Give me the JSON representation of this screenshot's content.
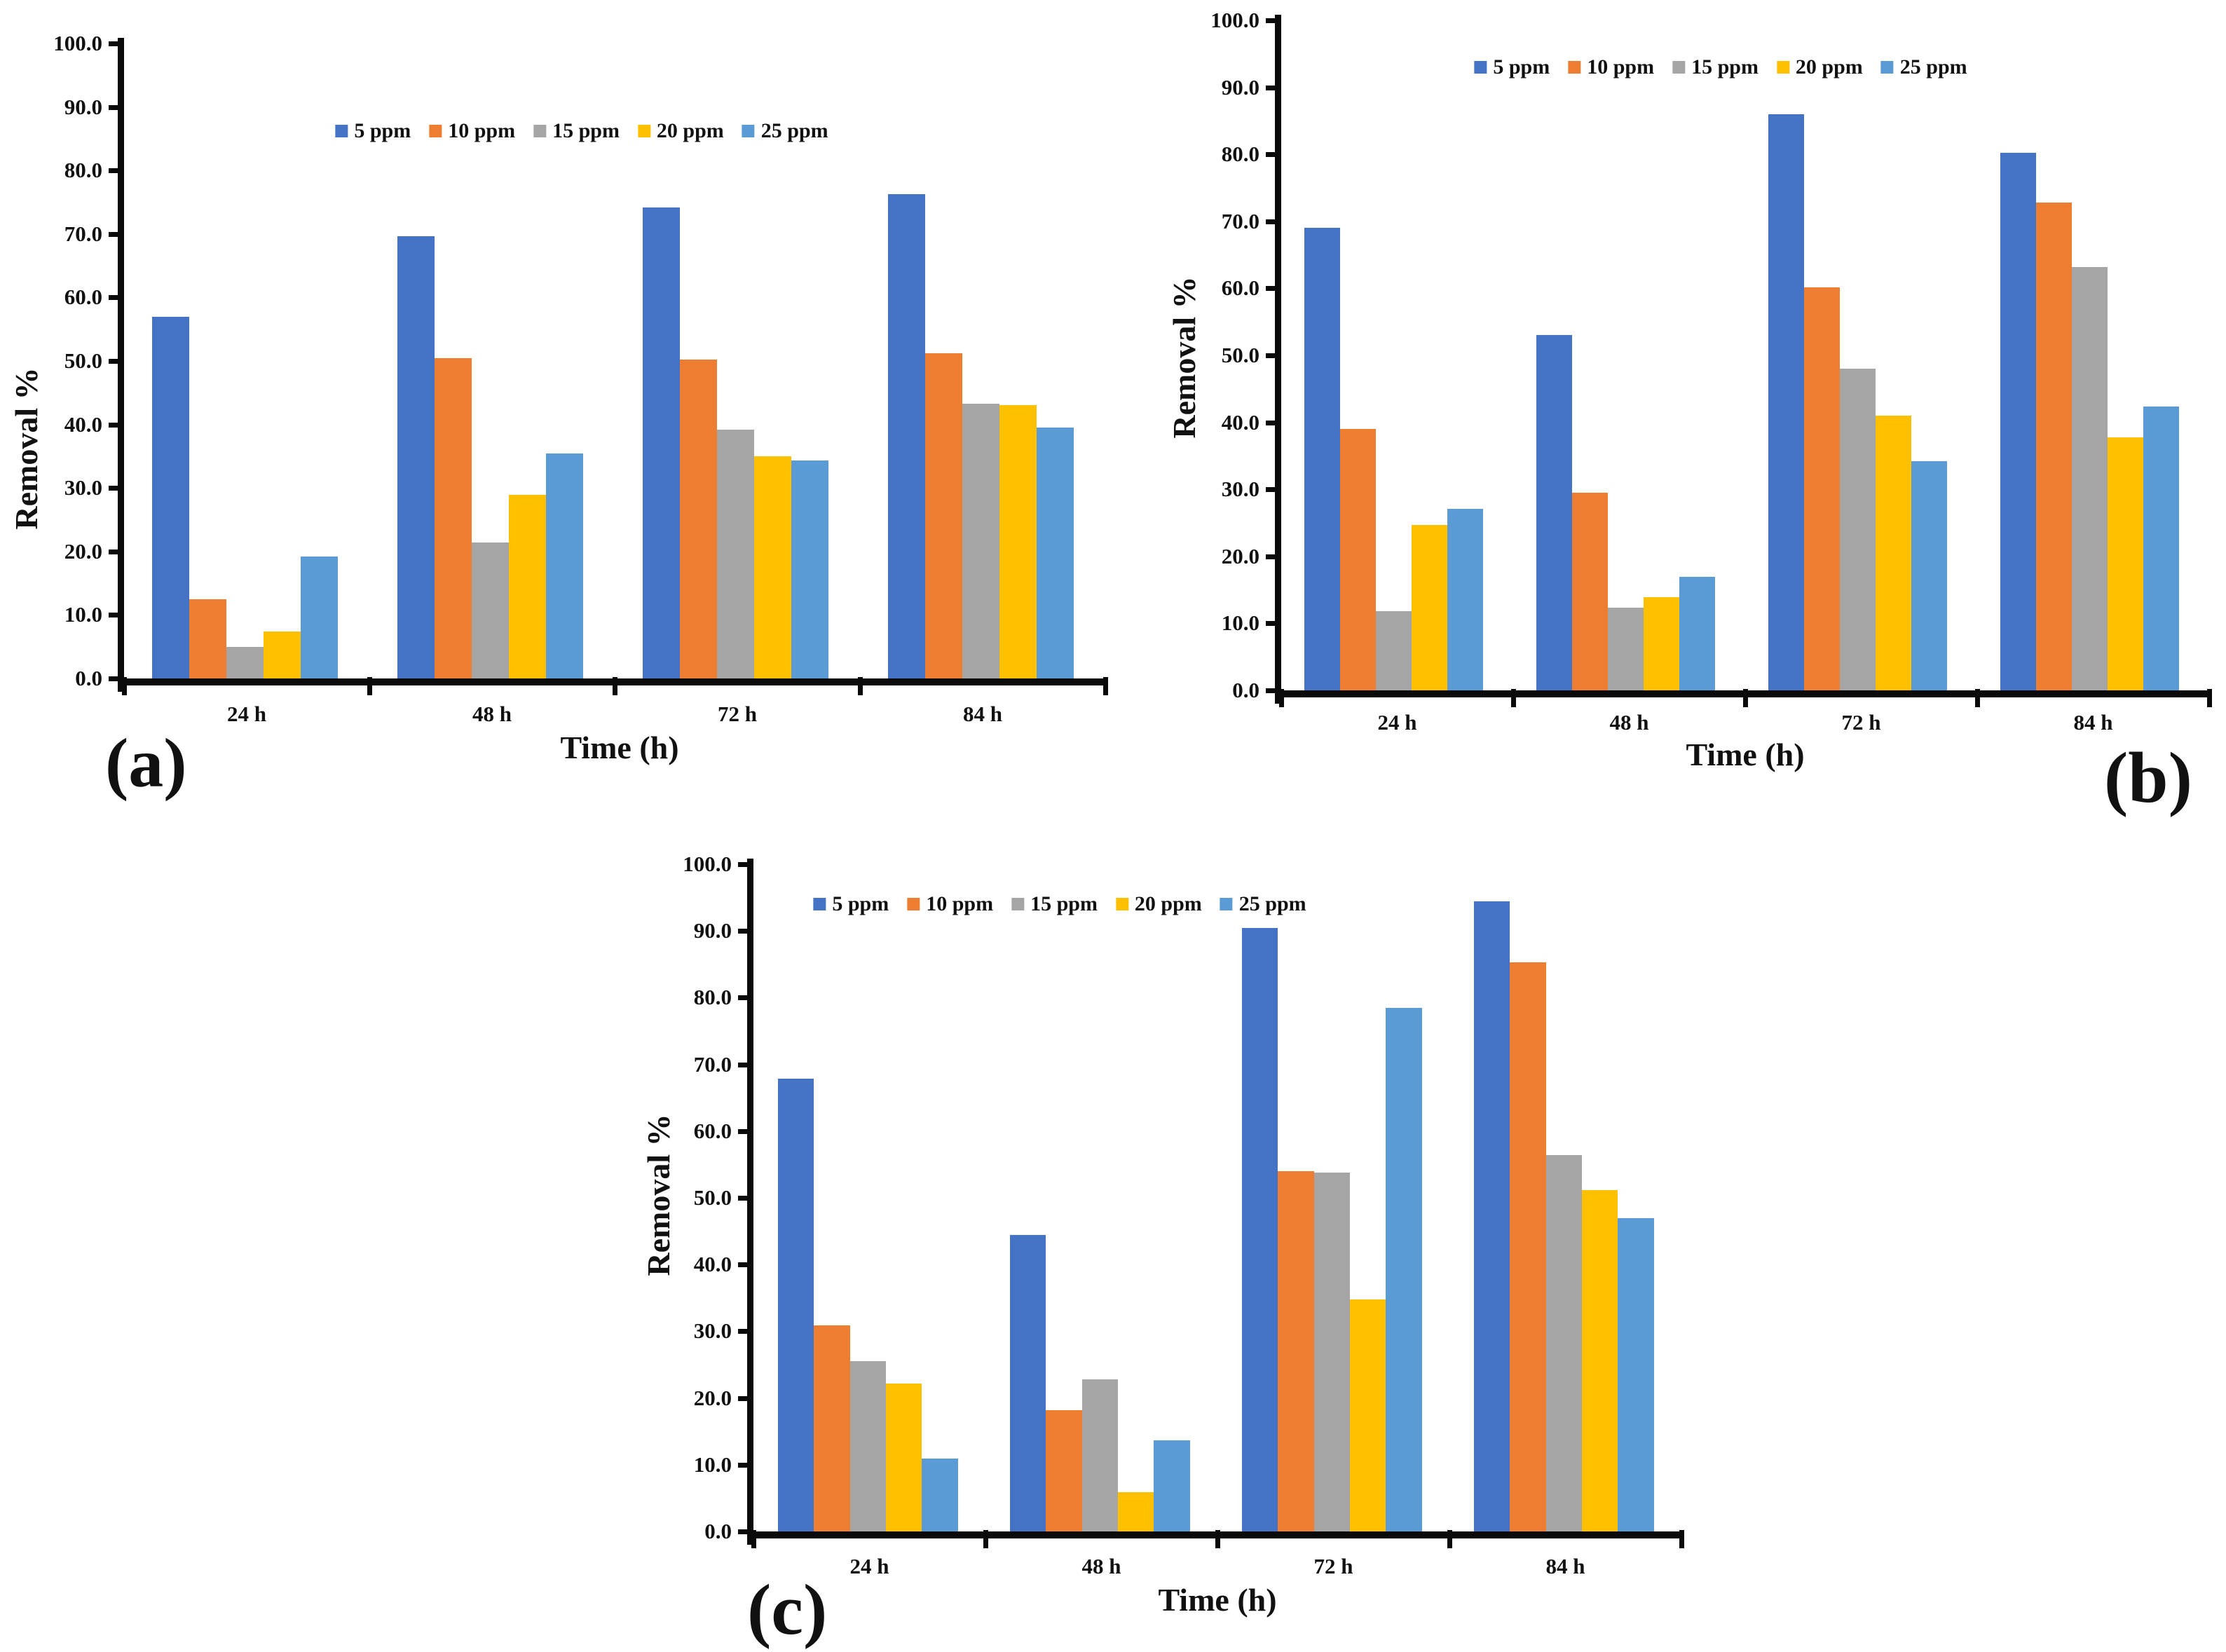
{
  "figure": {
    "background": "#ffffff",
    "text_color": "#111111",
    "series_colors": {
      "5 ppm": "#4472C4",
      "10 ppm": "#ED7D31",
      "15 ppm": "#A5A5A5",
      "20 ppm": "#FFC000",
      "25 ppm": "#5B9BD5"
    }
  },
  "chart_data": [
    {
      "id": "a",
      "type": "bar",
      "panel_label": "(a)",
      "xlabel": "Time (h)",
      "ylabel": "Removal %",
      "ylim": [
        0,
        100
      ],
      "ytick_step": 10,
      "ytick_format": "one_decimal",
      "grid": false,
      "legend_position": "top-center-inside",
      "categories": [
        "24 h",
        "48 h",
        "72 h",
        "84 h"
      ],
      "series": [
        {
          "name": "5 ppm",
          "color": "#4472C4",
          "values": [
            57.0,
            69.7,
            74.2,
            76.3
          ]
        },
        {
          "name": "10 ppm",
          "color": "#ED7D31",
          "values": [
            12.5,
            50.5,
            50.2,
            51.2
          ]
        },
        {
          "name": "15 ppm",
          "color": "#A5A5A5",
          "values": [
            5.0,
            21.4,
            39.2,
            43.3
          ]
        },
        {
          "name": "20 ppm",
          "color": "#FFC000",
          "values": [
            7.4,
            28.9,
            35.0,
            43.0
          ]
        },
        {
          "name": "25 ppm",
          "color": "#5B9BD5",
          "values": [
            19.2,
            35.4,
            34.3,
            39.5
          ]
        }
      ]
    },
    {
      "id": "b",
      "type": "bar",
      "panel_label": "(b)",
      "xlabel": "Time (h)",
      "ylabel": "Removal %",
      "ylim": [
        0,
        100
      ],
      "ytick_step": 10,
      "ytick_format": "one_decimal",
      "grid": false,
      "legend_position": "top-center-inside",
      "categories": [
        "24 h",
        "48 h",
        "72 h",
        "84 h"
      ],
      "series": [
        {
          "name": "5 ppm",
          "color": "#4472C4",
          "values": [
            69.0,
            53.0,
            86.0,
            80.2
          ]
        },
        {
          "name": "10 ppm",
          "color": "#ED7D31",
          "values": [
            39.0,
            29.5,
            60.2,
            72.8
          ]
        },
        {
          "name": "15 ppm",
          "color": "#A5A5A5",
          "values": [
            11.8,
            12.4,
            48.0,
            63.2
          ]
        },
        {
          "name": "20 ppm",
          "color": "#FFC000",
          "values": [
            24.7,
            13.9,
            41.0,
            37.8
          ]
        },
        {
          "name": "25 ppm",
          "color": "#5B9BD5",
          "values": [
            27.1,
            16.9,
            34.2,
            42.4
          ]
        }
      ]
    },
    {
      "id": "c",
      "type": "bar",
      "panel_label": "(c)",
      "xlabel": "Time (h)",
      "ylabel": "Removal %",
      "ylim": [
        0,
        100
      ],
      "ytick_step": 10,
      "ytick_format": "one_decimal",
      "grid": false,
      "legend_position": "top-center-inside",
      "categories": [
        "24 h",
        "48 h",
        "72 h",
        "84 h"
      ],
      "series": [
        {
          "name": "5 ppm",
          "color": "#4472C4",
          "values": [
            67.9,
            44.4,
            90.4,
            94.4
          ]
        },
        {
          "name": "10 ppm",
          "color": "#ED7D31",
          "values": [
            30.9,
            18.2,
            54.0,
            85.3
          ]
        },
        {
          "name": "15 ppm",
          "color": "#A5A5A5",
          "values": [
            25.5,
            22.8,
            53.8,
            56.4
          ]
        },
        {
          "name": "20 ppm",
          "color": "#FFC000",
          "values": [
            22.2,
            5.9,
            34.8,
            51.2
          ]
        },
        {
          "name": "25 ppm",
          "color": "#5B9BD5",
          "values": [
            10.9,
            13.7,
            78.5,
            47.0
          ]
        }
      ]
    }
  ]
}
